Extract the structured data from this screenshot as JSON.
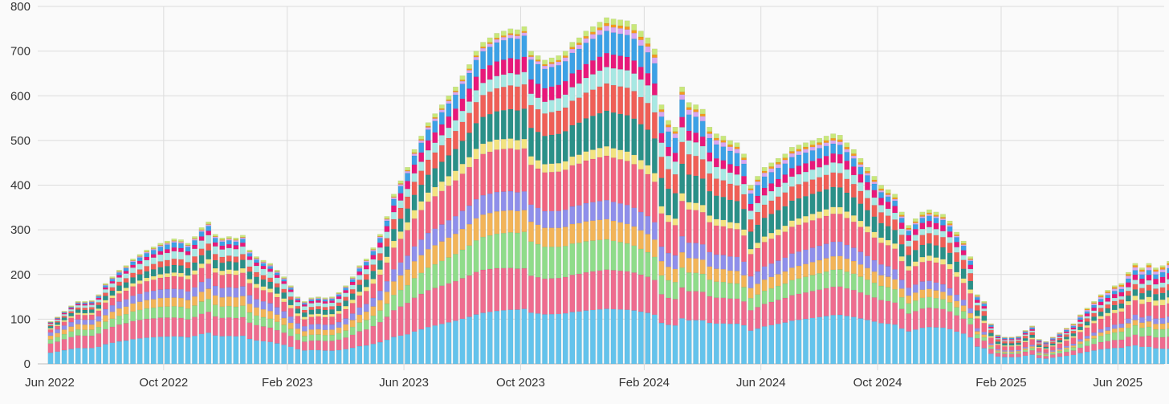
{
  "chart_data": {
    "type": "bar",
    "stacked": true,
    "title": "",
    "xlabel": "",
    "ylabel": "",
    "ylim": [
      0,
      800
    ],
    "yticks": [
      0,
      100,
      200,
      300,
      400,
      500,
      600,
      700,
      800
    ],
    "x_tick_labels": [
      "Jun 2022",
      "Oct 2022",
      "Feb 2023",
      "Jun 2023",
      "Oct 2023",
      "Feb 2024",
      "Jun 2024",
      "Oct 2024",
      "Feb 2025",
      "Jun 2025"
    ],
    "x_tick_weeks": [
      0,
      17,
      35,
      52,
      69,
      87,
      104,
      121,
      139,
      156
    ],
    "grid": true,
    "legend": "none",
    "n_weeks": 164,
    "series_colors": [
      "#63c3ec",
      "#ee6c8f",
      "#8fdc8a",
      "#f2b458",
      "#8f8fea",
      "#f06480",
      "#f2e380",
      "#2a9088",
      "#ef5f57",
      "#a7e8e3",
      "#e8187a",
      "#3ca1e6",
      "#d8a6f1",
      "#f59a1d",
      "#c9e87a"
    ],
    "share_anchors": {
      "weeks": [
        0,
        18,
        36,
        52,
        70,
        88,
        104,
        122,
        139,
        156,
        163
      ],
      "shares": [
        [
          0.27,
          0.22,
          0.1,
          0.09,
          0.08,
          0.07,
          0.03,
          0.05,
          0.03,
          0.03,
          0.02,
          0.01,
          0.005,
          0.005,
          0.015
        ],
        [
          0.22,
          0.15,
          0.09,
          0.07,
          0.07,
          0.1,
          0.03,
          0.06,
          0.05,
          0.06,
          0.03,
          0.04,
          0.01,
          0.005,
          0.015
        ],
        [
          0.22,
          0.14,
          0.09,
          0.08,
          0.08,
          0.11,
          0.04,
          0.07,
          0.04,
          0.06,
          0.03,
          0.02,
          0.01,
          0.005,
          0.015
        ],
        [
          0.15,
          0.16,
          0.09,
          0.08,
          0.07,
          0.13,
          0.04,
          0.07,
          0.06,
          0.04,
          0.04,
          0.04,
          0.01,
          0.005,
          0.015
        ],
        [
          0.18,
          0.13,
          0.12,
          0.07,
          0.06,
          0.14,
          0.03,
          0.1,
          0.08,
          0.04,
          0.05,
          0.07,
          0.01,
          0.005,
          0.015
        ],
        [
          0.17,
          0.12,
          0.08,
          0.06,
          0.06,
          0.14,
          0.03,
          0.12,
          0.09,
          0.06,
          0.04,
          0.07,
          0.02,
          0.01,
          0.02
        ],
        [
          0.2,
          0.12,
          0.07,
          0.06,
          0.07,
          0.13,
          0.03,
          0.1,
          0.07,
          0.05,
          0.04,
          0.06,
          0.02,
          0.01,
          0.02
        ],
        [
          0.23,
          0.13,
          0.08,
          0.06,
          0.06,
          0.12,
          0.03,
          0.08,
          0.06,
          0.04,
          0.04,
          0.03,
          0.01,
          0.01,
          0.02
        ],
        [
          0.26,
          0.12,
          0.05,
          0.04,
          0.04,
          0.15,
          0.04,
          0.08,
          0.08,
          0.04,
          0.04,
          0.04,
          0.01,
          0.01,
          0.02
        ],
        [
          0.2,
          0.1,
          0.1,
          0.05,
          0.05,
          0.15,
          0.04,
          0.06,
          0.05,
          0.04,
          0.05,
          0.04,
          0.03,
          0.02,
          0.02
        ],
        [
          0.15,
          0.12,
          0.08,
          0.06,
          0.06,
          0.13,
          0.06,
          0.07,
          0.06,
          0.05,
          0.06,
          0.05,
          0.03,
          0.02,
          0.02
        ]
      ]
    },
    "totals": [
      95,
      105,
      118,
      130,
      140,
      140,
      142,
      155,
      180,
      195,
      210,
      220,
      235,
      245,
      255,
      262,
      270,
      275,
      280,
      278,
      270,
      285,
      305,
      318,
      290,
      282,
      285,
      282,
      288,
      255,
      240,
      232,
      225,
      210,
      195,
      175,
      150,
      140,
      148,
      150,
      148,
      150,
      160,
      175,
      195,
      220,
      235,
      260,
      290,
      330,
      380,
      410,
      440,
      480,
      510,
      540,
      560,
      580,
      600,
      620,
      645,
      670,
      700,
      720,
      730,
      740,
      745,
      750,
      748,
      755,
      700,
      690,
      680,
      685,
      690,
      700,
      720,
      730,
      745,
      755,
      765,
      775,
      772,
      770,
      768,
      760,
      745,
      730,
      705,
      580,
      545,
      530,
      620,
      585,
      580,
      570,
      530,
      515,
      510,
      500,
      495,
      470,
      400,
      420,
      440,
      450,
      460,
      470,
      485,
      490,
      495,
      500,
      505,
      510,
      515,
      512,
      495,
      480,
      460,
      440,
      420,
      400,
      390,
      380,
      340,
      310,
      325,
      340,
      345,
      340,
      335,
      320,
      295,
      275,
      240,
      155,
      140,
      90,
      65,
      60,
      60,
      62,
      75,
      85,
      55,
      50,
      60,
      70,
      80,
      90,
      110,
      125,
      140,
      155,
      165,
      175,
      180,
      205,
      225,
      215,
      225,
      215,
      220,
      230
    ]
  }
}
